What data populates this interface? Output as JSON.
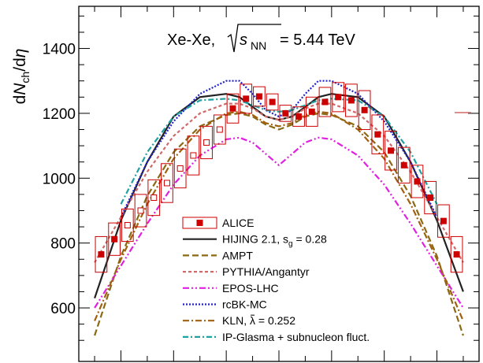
{
  "chart_data": {
    "type": "line",
    "title": "Xe-Xe, √s_NN = 5.44 TeV",
    "title_parts": {
      "system": "Xe-Xe,",
      "sqrt_s": "s",
      "sub": "NN",
      "energy": " = 5.44 TeV"
    },
    "ylabel": "dNch/dη",
    "ylabel_parts": {
      "a": "d",
      "b": "N",
      "sub": "ch",
      "c": "/d",
      "d": "η"
    },
    "xlabel": "",
    "xlim": [
      -3.8,
      3.8
    ],
    "ylim": [
      435,
      1530
    ],
    "yticks": [
      600,
      800,
      1000,
      1200,
      1400
    ],
    "yticklabels": [
      "600",
      "800",
      "1000",
      "1200",
      "1400"
    ],
    "xticks": [
      -3,
      -2,
      -1,
      0,
      1,
      2,
      3
    ],
    "grid": false,
    "legend_position": "bottom-center",
    "alice": {
      "name": "ALICE",
      "color": "#cc0000",
      "x": [
        -3.375,
        -3.125,
        -2.875,
        -2.625,
        -2.375,
        -2.125,
        -1.875,
        -1.625,
        -1.375,
        -1.125,
        -0.875,
        -0.625,
        -0.375,
        -0.125,
        0.125,
        0.375,
        0.625,
        0.875,
        1.125,
        1.375,
        1.625,
        1.875,
        2.125,
        2.375,
        2.625,
        2.875,
        3.125,
        3.375
      ],
      "y": [
        765,
        812,
        855,
        900,
        940,
        985,
        1030,
        1070,
        1110,
        1150,
        1215,
        1245,
        1252,
        1235,
        1200,
        1190,
        1205,
        1235,
        1250,
        1240,
        1210,
        1135,
        1085,
        1040,
        990,
        940,
        868,
        765
      ],
      "syst": [
        55,
        50,
        50,
        50,
        55,
        60,
        60,
        60,
        50,
        45,
        45,
        45,
        30,
        25,
        25,
        30,
        45,
        45,
        45,
        50,
        60,
        60,
        60,
        55,
        50,
        50,
        50,
        55
      ],
      "open_marker": [
        false,
        false,
        true,
        true,
        true,
        true,
        true,
        true,
        true,
        true,
        false,
        false,
        false,
        false,
        false,
        false,
        false,
        false,
        false,
        false,
        false,
        false,
        false,
        false,
        false,
        false,
        false,
        false
      ]
    },
    "series": [
      {
        "name": "HIJING 2.1, s_g = 0.28",
        "name_parts": {
          "pre": "HIJING 2.1, s",
          "sub": "g",
          "post": " = 0.28"
        },
        "color": "#222222",
        "dash": "solid",
        "x": [
          -3.5,
          -3.0,
          -2.5,
          -2.0,
          -1.5,
          -1.0,
          -0.75,
          -0.5,
          -0.25,
          0.0,
          0.25,
          0.5,
          0.75,
          1.0,
          1.5,
          2.0,
          2.5,
          3.0,
          3.5
        ],
        "y": [
          630,
          870,
          1050,
          1190,
          1250,
          1260,
          1250,
          1220,
          1190,
          1180,
          1190,
          1220,
          1250,
          1260,
          1250,
          1190,
          1050,
          870,
          650
        ]
      },
      {
        "name": "AMPT",
        "color": "#8b6914",
        "dash": "8,4",
        "x": [
          -3.5,
          -3.0,
          -2.5,
          -2.0,
          -1.5,
          -1.0,
          -0.75,
          -0.5,
          -0.25,
          0.0,
          0.25,
          0.5,
          0.75,
          1.0,
          1.5,
          2.0,
          2.5,
          3.0,
          3.5
        ],
        "y": [
          515,
          760,
          945,
          1080,
          1160,
          1195,
          1200,
          1190,
          1165,
          1150,
          1165,
          1190,
          1200,
          1195,
          1160,
          1080,
          945,
          760,
          515
        ]
      },
      {
        "name": "PYTHIA/Angantyr",
        "color": "#d06a6a",
        "dash": "4,3",
        "x": [
          -3.5,
          -3.0,
          -2.5,
          -2.0,
          -1.5,
          -1.0,
          -0.75,
          -0.5,
          -0.25,
          0.0,
          0.25,
          0.5,
          0.75,
          1.0,
          1.5,
          2.0,
          2.5,
          3.0,
          3.5
        ],
        "y": [
          740,
          880,
          1020,
          1130,
          1200,
          1230,
          1230,
          1215,
          1190,
          1180,
          1190,
          1215,
          1230,
          1230,
          1200,
          1130,
          1020,
          880,
          740
        ]
      },
      {
        "name": "EPOS-LHC",
        "color": "#e020e0",
        "dash": "8,3,2,3,2,3",
        "x": [
          -3.5,
          -3.0,
          -2.5,
          -2.0,
          -1.5,
          -1.0,
          -0.75,
          -0.5,
          -0.25,
          0.0,
          0.25,
          0.5,
          0.75,
          1.0,
          1.5,
          2.0,
          2.5,
          3.0,
          3.5
        ],
        "y": [
          600,
          730,
          860,
          980,
          1070,
          1120,
          1125,
          1110,
          1075,
          1040,
          1075,
          1110,
          1125,
          1120,
          1070,
          980,
          860,
          730,
          600
        ]
      },
      {
        "name": "rcBK-MC",
        "color": "#2222cc",
        "dash": "2,2",
        "x": [
          -3.0,
          -2.5,
          -2.0,
          -1.5,
          -1.0,
          -0.75,
          -0.5,
          -0.25,
          0.0,
          0.25,
          0.5,
          0.75,
          1.0,
          1.5,
          2.0,
          2.5,
          3.0
        ],
        "y": [
          880,
          1050,
          1175,
          1260,
          1300,
          1300,
          1260,
          1210,
          1190,
          1210,
          1260,
          1300,
          1300,
          1260,
          1175,
          1050,
          880
        ]
      },
      {
        "name": "KLN, λ = 0.252",
        "name_parts": {
          "pre": "KLN, ",
          "lam": "λ",
          "post": " = 0.252"
        },
        "color": "#a06010",
        "dash": "8,3,2,3",
        "x": [
          -3.5,
          -3.0,
          -2.5,
          -2.0,
          -1.5,
          -1.0,
          -0.75,
          -0.5,
          -0.25,
          0.0,
          0.25,
          0.5,
          0.75,
          1.0,
          1.5,
          2.0,
          2.5,
          3.0,
          3.5
        ],
        "y": [
          560,
          750,
          920,
          1060,
          1150,
          1200,
          1205,
          1195,
          1170,
          1160,
          1170,
          1195,
          1205,
          1200,
          1150,
          1060,
          920,
          750,
          560
        ]
      },
      {
        "name": "IP-Glasma + subnucleon fluct.",
        "color": "#20a0a0",
        "dash": "7,3,2,3",
        "x": [
          -3.0,
          -2.5,
          -2.0,
          -1.5,
          -1.0,
          -0.75,
          -0.5,
          -0.25,
          0.0,
          0.25,
          0.5,
          0.75,
          1.0,
          1.5,
          2.0,
          2.5,
          3.0
        ],
        "y": [
          920,
          1080,
          1190,
          1240,
          1245,
          1240,
          1225,
          1210,
          1205,
          1210,
          1225,
          1240,
          1245,
          1240,
          1190,
          1080,
          920
        ]
      }
    ]
  }
}
